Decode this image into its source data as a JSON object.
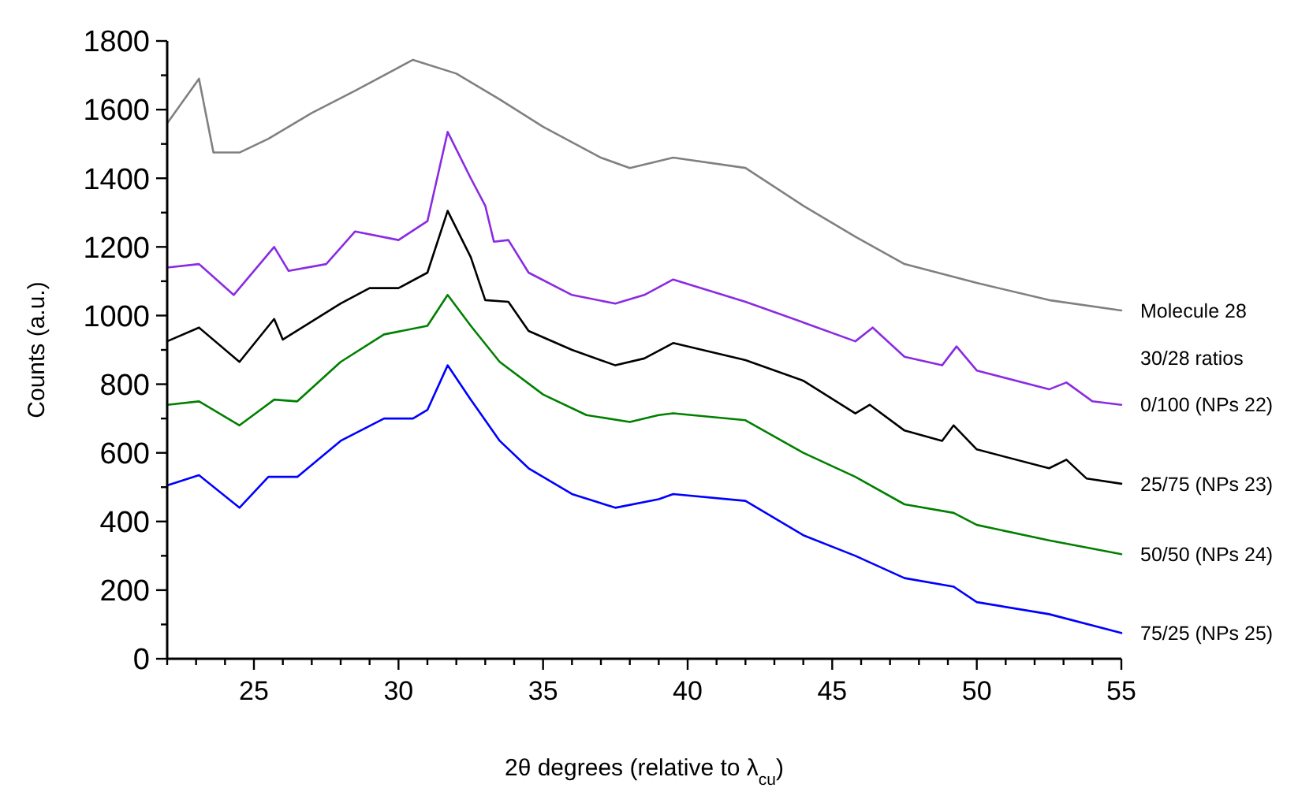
{
  "chart_data": {
    "type": "line",
    "xlabel": "2θ degrees (relative to λ$_{cu}$)",
    "ylabel": "Counts (a.u.)",
    "legend_title": "30/28 ratios",
    "legend": "right",
    "grid": false,
    "marker": "none",
    "line_style": "solid",
    "xlim": [
      22,
      55
    ],
    "ylim": [
      0,
      1800
    ],
    "xticks": [
      {
        "value": 22,
        "label": null
      },
      {
        "value": 23,
        "label": null
      },
      {
        "value": 24,
        "label": null
      },
      25,
      {
        "value": 26,
        "label": null
      },
      {
        "value": 27,
        "label": null
      },
      {
        "value": 28,
        "label": null
      },
      {
        "value": 29,
        "label": null
      },
      30,
      {
        "value": 31,
        "label": null
      },
      {
        "value": 32,
        "label": null
      },
      {
        "value": 33,
        "label": null
      },
      {
        "value": 34,
        "label": null
      },
      35,
      {
        "value": 36,
        "label": null
      },
      {
        "value": 37,
        "label": null
      },
      {
        "value": 38,
        "label": null
      },
      {
        "value": 39,
        "label": null
      },
      40,
      {
        "value": 41,
        "label": null
      },
      {
        "value": 42,
        "label": null
      },
      {
        "value": 43,
        "label": null
      },
      {
        "value": 44,
        "label": null
      },
      45,
      {
        "value": 46,
        "label": null
      },
      {
        "value": 47,
        "label": null
      },
      {
        "value": 48,
        "label": null
      },
      {
        "value": 49,
        "label": null
      },
      50,
      {
        "value": 51,
        "label": null
      },
      {
        "value": 52,
        "label": null
      },
      {
        "value": 53,
        "label": null
      },
      {
        "value": 54,
        "label": null
      },
      55
    ],
    "yticks": [
      0,
      {
        "value": 100,
        "label": null
      },
      200,
      {
        "value": 300,
        "label": null
      },
      400,
      {
        "value": 500,
        "label": null
      },
      600,
      {
        "value": 700,
        "label": null
      },
      800,
      {
        "value": 900,
        "label": null
      },
      1000,
      {
        "value": 1100,
        "label": null
      },
      1200,
      {
        "value": 1300,
        "label": null
      },
      1400,
      {
        "value": 1500,
        "label": null
      },
      1600,
      {
        "value": 1700,
        "label": null
      },
      1800
    ],
    "series": [
      {
        "name": "Molecule 28",
        "color": "#808080",
        "x": [
          22,
          23.1,
          23.6,
          24.5,
          25.5,
          27,
          28.5,
          30.5,
          32,
          33.5,
          35,
          37,
          38,
          39.5,
          42,
          44,
          45.8,
          47.5,
          50,
          52.5,
          55
        ],
        "values": [
          1560,
          1690,
          1475,
          1475,
          1515,
          1590,
          1655,
          1745,
          1705,
          1630,
          1550,
          1460,
          1430,
          1460,
          1430,
          1320,
          1230,
          1150,
          1095,
          1045,
          1015
        ]
      },
      {
        "name": "0/100 (NPs 22)",
        "color": "#8a2be2",
        "x": [
          22,
          23.1,
          24.3,
          25.7,
          26.2,
          27.5,
          28.5,
          30,
          31,
          31.7,
          32.5,
          33,
          33.3,
          33.8,
          34.5,
          36,
          37.5,
          38.5,
          39.5,
          42,
          44,
          45.8,
          46.4,
          47.5,
          48.8,
          49.3,
          50,
          52.5,
          53.1,
          54,
          55
        ],
        "values": [
          1140,
          1150,
          1060,
          1200,
          1130,
          1150,
          1245,
          1220,
          1275,
          1535,
          1400,
          1320,
          1215,
          1220,
          1125,
          1060,
          1035,
          1060,
          1105,
          1040,
          980,
          925,
          965,
          880,
          855,
          910,
          840,
          785,
          805,
          750,
          740
        ]
      },
      {
        "name": "25/75 (NPs 23)",
        "color": "#000000",
        "x": [
          22,
          23.1,
          24.5,
          25.7,
          26,
          28,
          29,
          30,
          31,
          31.7,
          32.5,
          33,
          33.8,
          34.5,
          36,
          37.5,
          38.5,
          39.5,
          42,
          44,
          45.8,
          46.3,
          47.5,
          48.8,
          49.2,
          50,
          52.5,
          53.1,
          53.8,
          55
        ],
        "values": [
          925,
          965,
          865,
          990,
          930,
          1035,
          1080,
          1080,
          1125,
          1305,
          1170,
          1045,
          1040,
          955,
          900,
          855,
          875,
          920,
          870,
          810,
          715,
          740,
          665,
          635,
          680,
          610,
          555,
          580,
          525,
          510
        ]
      },
      {
        "name": "50/50 (NPs 24)",
        "color": "#008000",
        "x": [
          22,
          23.1,
          24.5,
          25.7,
          26.5,
          28,
          29.5,
          31,
          31.7,
          32.5,
          33.5,
          35,
          36.5,
          38,
          39,
          39.5,
          42,
          44,
          45.8,
          47.5,
          49.2,
          50,
          52.5,
          55
        ],
        "values": [
          740,
          750,
          680,
          755,
          750,
          865,
          945,
          970,
          1060,
          970,
          865,
          770,
          710,
          690,
          710,
          715,
          695,
          600,
          530,
          450,
          425,
          390,
          345,
          305
        ]
      },
      {
        "name": "75/25 (NPs 25)",
        "color": "#0000ff",
        "x": [
          22,
          23.1,
          24.5,
          25.5,
          26.5,
          28,
          29.5,
          30.5,
          31,
          31.7,
          32.5,
          33.5,
          34.5,
          36,
          37.5,
          39,
          39.5,
          42,
          44,
          45.8,
          47.5,
          49.2,
          50,
          52.5,
          55
        ],
        "values": [
          505,
          535,
          440,
          530,
          530,
          635,
          700,
          700,
          725,
          855,
          755,
          635,
          555,
          480,
          440,
          465,
          480,
          460,
          360,
          300,
          235,
          210,
          165,
          130,
          75
        ]
      }
    ]
  }
}
